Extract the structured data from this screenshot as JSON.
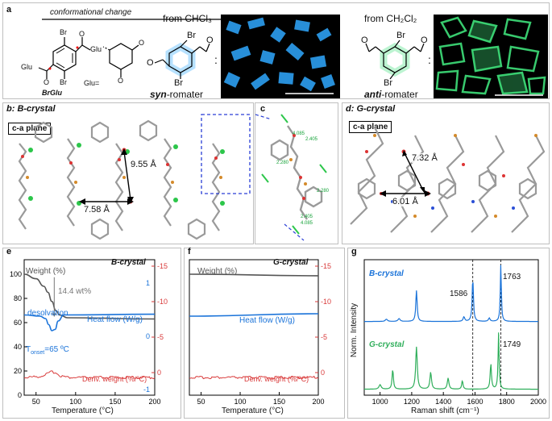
{
  "panel_a": {
    "label": "a",
    "arrow_label": "conformational change",
    "compound": "BrGlu",
    "glu_group": "Glu",
    "glu_def": "Glu=",
    "atom_br": "Br",
    "atom_o": "O",
    "from_chcl3": "from CHCl₃",
    "from_ch2cl2": "from CH₂Cl₂",
    "syn_name_prefix": "syn",
    "anti_name_prefix": "anti",
    "name_suffix": "-romater",
    "colon": ":",
    "syn_color": "#2fa8ff",
    "anti_color": "#3fe07a"
  },
  "panel_b": {
    "label": "b: B-crystal",
    "plane": "c-a plane",
    "dist1": "9.55 Å",
    "dist2": "7.58 Å"
  },
  "panel_c": {
    "label": "c",
    "numbers": [
      "4.085",
      "2.405",
      "2.280",
      "2.280",
      "2.405",
      "4.085"
    ]
  },
  "panel_d": {
    "label": "d: G-crystal",
    "plane": "c-a plane",
    "dist1": "7.32 Å",
    "dist2": "6.01 Å"
  },
  "panel_e": {
    "label": "e",
    "title": "B-crystal",
    "weight": "Weight (%)",
    "loss": "14.4 wt%",
    "desolvation": "desolvation",
    "heatflow": "Heat flow (W/g)",
    "onset": "T",
    "onset_sub": "onset",
    "onset_val": "=65 ºC",
    "deriv": "Deriv. weight (%/ºC)",
    "xlabel": "Temperature (°C)",
    "xticks": [
      "50",
      "100",
      "150",
      "200"
    ],
    "yleft": [
      "100",
      "80",
      "60",
      "40",
      "20",
      "0"
    ],
    "yright_red": [
      "-15",
      "-10",
      "-5",
      "0"
    ],
    "yright_blue": [
      "1",
      "0",
      "-1"
    ]
  },
  "panel_f": {
    "label": "f",
    "title": "G-crystal",
    "weight": "Weight (%)",
    "heatflow": "Heat flow (W/g)",
    "deriv": "Deriv. weight (%/ºC)",
    "xlabel": "Temperature (°C)",
    "xticks": [
      "50",
      "100",
      "150",
      "200"
    ],
    "yright_red": [
      "-15",
      "-10",
      "-5",
      "0"
    ]
  },
  "panel_g": {
    "label": "g",
    "b_name": "B-crystal",
    "g_name": "G-crystal",
    "peak1": "1586",
    "peak2": "1763",
    "peak3": "1749",
    "ylabel": "Norm. Intensity",
    "xlabel": "Raman shift (cm⁻¹)",
    "xticks": [
      "1000",
      "1200",
      "1400",
      "1600",
      "1800",
      "2000"
    ]
  },
  "chart_data": [
    {
      "type": "line",
      "title": "B-crystal",
      "xlabel": "Temperature (°C)",
      "xlim": [
        35,
        200
      ],
      "series": [
        {
          "name": "Weight (%)",
          "x": [
            35,
            50,
            60,
            65,
            70,
            75,
            80,
            90,
            200
          ],
          "y": [
            100,
            98.5,
            96,
            94,
            91,
            88,
            86.5,
            85.6,
            85.2
          ]
        },
        {
          "name": "Heat flow (W/g)",
          "x": [
            35,
            55,
            62,
            66,
            70,
            74,
            78,
            85,
            200
          ],
          "y": [
            0.05,
            0.0,
            -0.1,
            -0.35,
            -0.6,
            -0.55,
            -0.2,
            0.05,
            0.08
          ]
        },
        {
          "name": "Deriv. weight (%/ºC)",
          "x": [
            35,
            55,
            65,
            70,
            75,
            80,
            90,
            200
          ],
          "y": [
            0.0,
            0.1,
            0.4,
            0.6,
            0.5,
            0.2,
            0.0,
            0.0
          ]
        }
      ]
    },
    {
      "type": "line",
      "title": "G-crystal",
      "xlabel": "Temperature (°C)",
      "xlim": [
        35,
        200
      ],
      "series": [
        {
          "name": "Weight (%)",
          "x": [
            35,
            200
          ],
          "y": [
            100,
            99.5
          ]
        },
        {
          "name": "Heat flow (W/g)",
          "x": [
            35,
            200
          ],
          "y": [
            0.0,
            0.1
          ]
        },
        {
          "name": "Deriv. weight (%/ºC)",
          "x": [
            35,
            200
          ],
          "y": [
            0.0,
            0.0
          ]
        }
      ]
    },
    {
      "type": "line",
      "xlabel": "Raman shift (cm⁻¹)",
      "ylabel": "Norm. Intensity",
      "xlim": [
        900,
        2000
      ],
      "series": [
        {
          "name": "B-crystal",
          "x": [
            900,
            1000,
            1100,
            1230,
            1400,
            1530,
            1586,
            1700,
            1763,
            1900,
            2000
          ],
          "y": [
            0.05,
            0.07,
            0.1,
            0.55,
            0.1,
            0.12,
            0.75,
            0.1,
            1.0,
            0.03,
            0.02
          ]
        },
        {
          "name": "G-crystal",
          "x": [
            900,
            1000,
            1080,
            1230,
            1320,
            1430,
            1580,
            1700,
            1749,
            1900,
            2000
          ],
          "y": [
            0.05,
            0.1,
            0.35,
            0.75,
            0.35,
            0.2,
            0.15,
            0.4,
            1.0,
            0.03,
            0.02
          ]
        }
      ]
    }
  ]
}
